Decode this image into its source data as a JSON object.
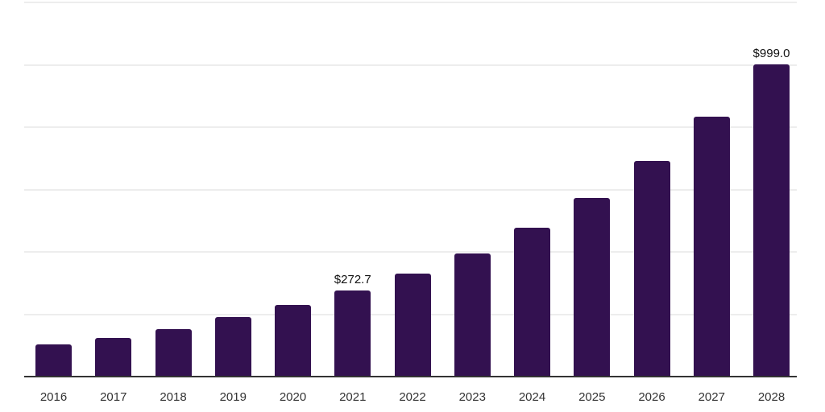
{
  "chart_data": {
    "type": "bar",
    "title": "",
    "xlabel": "",
    "ylabel": "",
    "categories": [
      "2016",
      "2017",
      "2018",
      "2019",
      "2020",
      "2021",
      "2022",
      "2023",
      "2024",
      "2025",
      "2026",
      "2027",
      "2028"
    ],
    "values": [
      100.9,
      121.5,
      148.9,
      188.7,
      227.3,
      272.7,
      328.3,
      392.5,
      474.8,
      569.5,
      688.3,
      830.2,
      999.0
    ],
    "annotations": [
      {
        "category": "2021",
        "text": "$272.7"
      },
      {
        "category": "2028",
        "text": "$999.0"
      }
    ],
    "ylim": [
      0,
      1200
    ],
    "gridline_step": 200,
    "grid": true,
    "legend": "none",
    "y_tick_labels_visible": false,
    "colors": {
      "bar": "#331150",
      "axis_line": "#333333",
      "gridline": "#ededed",
      "tick_label": "#333333",
      "data_label": "#111111",
      "background": "#ffffff"
    }
  }
}
